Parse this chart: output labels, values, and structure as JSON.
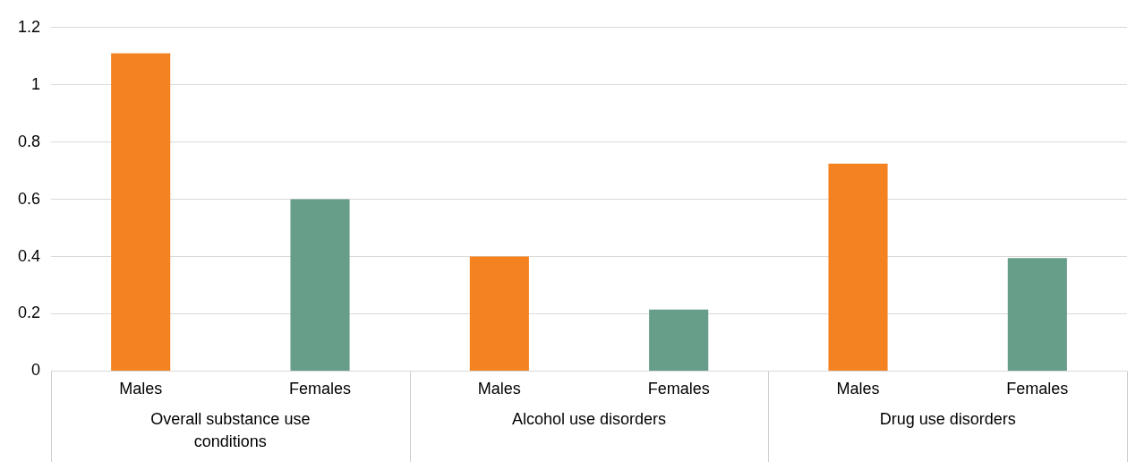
{
  "chart_data": {
    "type": "bar",
    "categories": [
      "Males",
      "Females",
      "Males",
      "Females",
      "Males",
      "Females"
    ],
    "values": [
      1.11,
      0.6,
      0.4,
      0.215,
      0.725,
      0.395
    ],
    "colors": [
      "#f58220",
      "#679e8a",
      "#f58220",
      "#679e8a",
      "#f58220",
      "#679e8a"
    ],
    "ylim": [
      0,
      1.2
    ],
    "yticks": [
      0,
      0.2,
      0.4,
      0.6,
      0.8,
      1,
      1.2
    ],
    "grid": "y",
    "legend": false,
    "annotations": [
      "Overall substance use conditions",
      "Alcohol use disorders",
      "Drug use disorders"
    ]
  }
}
